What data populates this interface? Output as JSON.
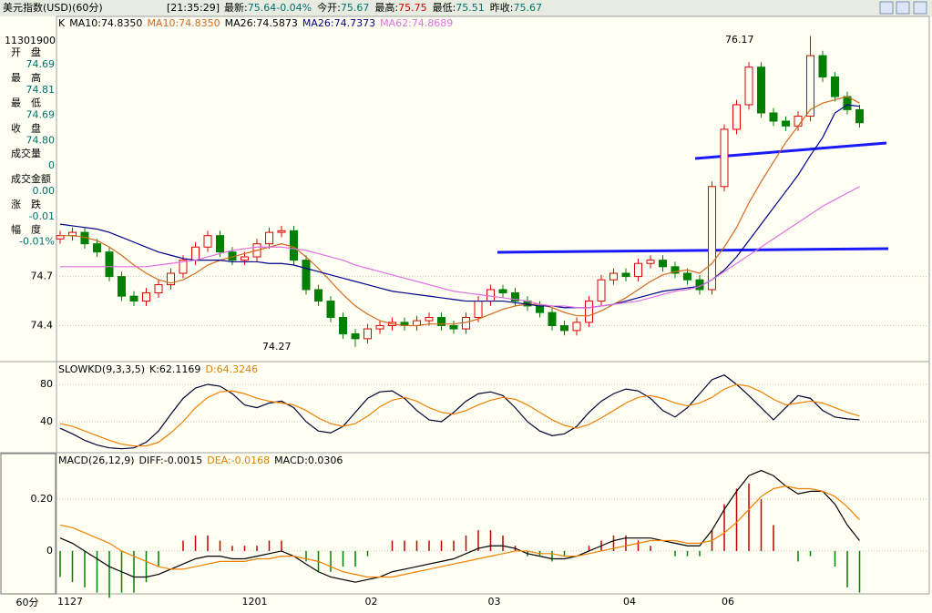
{
  "header": {
    "title": "美元指数(USD)(60分)",
    "time": "[21:35:29]",
    "fields": [
      {
        "text": "最新:",
        "color": "#000"
      },
      {
        "text": "75.64",
        "color": "#007070"
      },
      {
        "text": "-0.04%",
        "color": "#007070"
      },
      {
        "text": "今开:",
        "color": "#000"
      },
      {
        "text": "75.67",
        "color": "#007070"
      },
      {
        "text": "最高:",
        "color": "#000"
      },
      {
        "text": "75.75",
        "color": "#d00000"
      },
      {
        "text": "最低:",
        "color": "#000"
      },
      {
        "text": "75.51",
        "color": "#007070"
      },
      {
        "text": "昨收:",
        "color": "#000"
      },
      {
        "text": "75.67",
        "color": "#007070"
      }
    ]
  },
  "sidebar": {
    "id": "11301900",
    "rows": [
      {
        "label": "开　盘",
        "value": "74.69"
      },
      {
        "label": "最　高",
        "value": "74.81"
      },
      {
        "label": "最　低",
        "value": "74.69"
      },
      {
        "label": "收　盘",
        "value": "74.80"
      },
      {
        "label": "成交量",
        "value": "0"
      },
      {
        "label": "成交金额",
        "value": "0.00"
      },
      {
        "label": "涨　跌",
        "value": "-0.01"
      },
      {
        "label": "幅　度",
        "value": "-0.01%"
      }
    ],
    "period": "60分"
  },
  "chart_data": [
    {
      "type": "candlestick",
      "legend": [
        {
          "text": "K",
          "color": "#000"
        },
        {
          "text": "MA10:74.8350",
          "color": "#000"
        },
        {
          "text": "MA10:74.8350",
          "color": "#d2691e"
        },
        {
          "text": "MA26:74.5873",
          "color": "#000"
        },
        {
          "text": "MA26:74.7373",
          "color": "#000080"
        },
        {
          "text": "MA62:74.8689",
          "color": "#e070e0"
        }
      ],
      "categories": [
        "1127",
        null,
        null,
        null,
        null,
        null,
        null,
        null,
        null,
        null,
        null,
        null,
        null,
        null,
        null,
        "1201",
        null,
        null,
        null,
        null,
        null,
        null,
        null,
        null,
        null,
        "02",
        null,
        null,
        null,
        null,
        null,
        null,
        null,
        null,
        null,
        "03",
        null,
        null,
        null,
        null,
        null,
        null,
        null,
        null,
        null,
        null,
        "04",
        null,
        null,
        null,
        null,
        null,
        null,
        null,
        "06",
        null,
        null,
        null,
        null,
        null,
        null,
        null,
        null,
        null,
        null,
        null
      ],
      "open": [
        74.93,
        74.95,
        74.97,
        74.9,
        74.85,
        74.7,
        74.58,
        74.55,
        74.6,
        74.65,
        74.72,
        74.8,
        74.88,
        74.95,
        74.85,
        74.8,
        74.82,
        74.9,
        74.97,
        74.98,
        74.8,
        74.62,
        74.55,
        74.45,
        74.35,
        74.32,
        74.38,
        74.4,
        74.42,
        74.4,
        74.43,
        74.45,
        74.4,
        74.38,
        74.45,
        74.55,
        74.62,
        74.6,
        74.55,
        74.52,
        74.48,
        74.4,
        74.37,
        74.42,
        74.55,
        74.68,
        74.72,
        74.7,
        74.78,
        74.8,
        74.76,
        74.72,
        74.68,
        74.62,
        75.25,
        75.6,
        75.75,
        75.98,
        75.7,
        75.65,
        75.62,
        75.68,
        76.05,
        75.92,
        75.8,
        75.72
      ],
      "high": [
        74.98,
        75.0,
        75.0,
        74.93,
        74.88,
        74.73,
        74.61,
        74.63,
        74.68,
        74.75,
        74.83,
        74.91,
        74.98,
        74.98,
        74.88,
        74.85,
        74.93,
        75.0,
        75.01,
        75.01,
        74.83,
        74.65,
        74.58,
        74.48,
        74.38,
        74.41,
        74.43,
        74.45,
        74.45,
        74.46,
        74.48,
        74.48,
        74.43,
        74.48,
        74.58,
        74.65,
        74.65,
        74.63,
        74.58,
        74.55,
        74.51,
        74.43,
        74.45,
        74.58,
        74.71,
        74.75,
        74.75,
        74.81,
        74.83,
        74.83,
        74.79,
        74.75,
        74.71,
        75.28,
        75.63,
        75.78,
        76.01,
        76.01,
        75.73,
        75.68,
        75.71,
        76.17,
        76.08,
        75.95,
        75.83,
        75.75
      ],
      "low": [
        74.9,
        74.92,
        74.87,
        74.82,
        74.67,
        74.55,
        74.52,
        74.52,
        74.57,
        74.62,
        74.69,
        74.77,
        74.85,
        74.82,
        74.77,
        74.77,
        74.79,
        74.87,
        74.94,
        74.77,
        74.59,
        74.52,
        74.42,
        74.32,
        74.27,
        74.29,
        74.35,
        74.37,
        74.37,
        74.37,
        74.4,
        74.37,
        74.35,
        74.35,
        74.42,
        74.52,
        74.57,
        74.52,
        74.49,
        74.45,
        74.37,
        74.34,
        74.34,
        74.39,
        74.52,
        74.65,
        74.67,
        74.67,
        74.75,
        74.73,
        74.69,
        74.65,
        74.59,
        74.59,
        75.22,
        75.57,
        75.72,
        75.67,
        75.62,
        75.59,
        75.59,
        75.65,
        75.89,
        75.77,
        75.69,
        75.61
      ],
      "close": [
        74.95,
        74.97,
        74.9,
        74.85,
        74.7,
        74.58,
        74.55,
        74.6,
        74.65,
        74.72,
        74.8,
        74.88,
        74.95,
        74.85,
        74.8,
        74.82,
        74.9,
        74.97,
        74.98,
        74.8,
        74.62,
        74.55,
        74.45,
        74.35,
        74.32,
        74.38,
        74.4,
        74.42,
        74.4,
        74.43,
        74.45,
        74.4,
        74.38,
        74.45,
        74.55,
        74.62,
        74.6,
        74.55,
        74.52,
        74.48,
        74.4,
        74.37,
        74.42,
        74.55,
        74.68,
        74.72,
        74.7,
        74.78,
        74.8,
        74.76,
        74.72,
        74.68,
        74.62,
        75.25,
        75.6,
        75.75,
        75.98,
        75.7,
        75.65,
        75.62,
        75.68,
        76.05,
        75.92,
        75.8,
        75.72,
        75.64
      ],
      "up_color": "#e00000",
      "down_color": "#008000",
      "series": [
        {
          "color": "#d2691e",
          "values": [
            74.95,
            74.95,
            74.94,
            74.92,
            74.88,
            74.83,
            74.77,
            74.72,
            74.68,
            74.66,
            74.68,
            74.72,
            74.77,
            74.8,
            74.82,
            74.84,
            74.86,
            74.88,
            74.9,
            74.88,
            74.82,
            74.75,
            74.67,
            74.59,
            74.52,
            74.47,
            74.43,
            74.41,
            74.4,
            74.4,
            74.41,
            74.41,
            74.41,
            74.42,
            74.44,
            74.47,
            74.5,
            74.52,
            74.53,
            74.53,
            74.51,
            74.48,
            74.46,
            74.46,
            74.49,
            74.53,
            74.57,
            74.62,
            74.67,
            74.71,
            74.73,
            74.74,
            74.72,
            74.78,
            74.88,
            75.0,
            75.15,
            75.28,
            75.4,
            75.52,
            75.62,
            75.72,
            75.76,
            75.78,
            75.8,
            75.76
          ]
        },
        {
          "color": "#00008b",
          "values": [
            75.02,
            75.01,
            75.0,
            74.99,
            74.97,
            74.94,
            74.91,
            74.88,
            74.85,
            74.83,
            74.81,
            74.8,
            74.8,
            74.8,
            74.79,
            74.79,
            74.79,
            74.78,
            74.78,
            74.77,
            74.75,
            74.73,
            74.71,
            74.69,
            74.67,
            74.65,
            74.63,
            74.61,
            74.6,
            74.59,
            74.58,
            74.57,
            74.56,
            74.55,
            74.55,
            74.55,
            74.55,
            74.54,
            74.53,
            74.52,
            74.52,
            74.51,
            74.51,
            74.51,
            74.52,
            74.53,
            74.55,
            74.57,
            74.59,
            74.61,
            74.62,
            74.63,
            74.64,
            74.68,
            74.74,
            74.82,
            74.92,
            75.02,
            75.12,
            75.22,
            75.32,
            75.44,
            75.55,
            75.7,
            75.75,
            75.74
          ]
        },
        {
          "color": "#e070e0",
          "values": [
            74.76,
            74.76,
            74.76,
            74.76,
            74.76,
            74.76,
            74.76,
            74.76,
            74.77,
            74.78,
            74.79,
            74.8,
            74.82,
            74.84,
            74.86,
            74.87,
            74.88,
            74.88,
            74.88,
            74.87,
            74.86,
            74.84,
            74.82,
            74.8,
            74.77,
            74.75,
            74.73,
            74.71,
            74.69,
            74.67,
            74.65,
            74.63,
            74.61,
            74.6,
            74.59,
            74.58,
            74.57,
            74.56,
            74.55,
            74.53,
            74.52,
            74.52,
            74.51,
            74.51,
            74.52,
            74.53,
            74.54,
            74.55,
            74.57,
            74.59,
            74.61,
            74.62,
            74.64,
            74.68,
            74.73,
            74.78,
            74.83,
            74.88,
            74.93,
            74.98,
            75.03,
            75.08,
            75.13,
            75.17,
            75.21,
            75.25
          ]
        }
      ],
      "annotations": [
        "76.17",
        "74.27"
      ],
      "ylim": [
        74.18,
        76.29
      ],
      "yticks": [
        74.4,
        74.7
      ],
      "grid": true
    },
    {
      "type": "line",
      "legend": [
        {
          "text": "SLOWKD(9,3,3,5)",
          "color": "#000"
        },
        {
          "text": "K:62.1169",
          "color": "#000"
        },
        {
          "text": "D:64.3246",
          "color": "#e08000"
        }
      ],
      "series": [
        {
          "color": "#000033",
          "values": [
            33,
            27,
            20,
            15,
            12,
            11,
            12,
            18,
            30,
            48,
            65,
            76,
            80,
            78,
            70,
            58,
            55,
            60,
            62,
            55,
            40,
            30,
            28,
            35,
            50,
            65,
            72,
            73,
            65,
            52,
            42,
            40,
            50,
            62,
            70,
            72,
            68,
            55,
            40,
            30,
            25,
            27,
            35,
            50,
            62,
            70,
            75,
            73,
            65,
            52,
            45,
            55,
            70,
            85,
            90,
            80,
            68,
            55,
            42,
            55,
            68,
            65,
            52,
            45,
            43,
            42
          ]
        },
        {
          "color": "#f08000",
          "values": [
            38,
            35,
            30,
            25,
            20,
            16,
            14,
            14,
            18,
            28,
            40,
            55,
            66,
            72,
            73,
            70,
            65,
            62,
            60,
            58,
            52,
            44,
            38,
            35,
            38,
            46,
            56,
            63,
            66,
            62,
            55,
            50,
            48,
            52,
            58,
            63,
            66,
            64,
            58,
            50,
            42,
            36,
            33,
            37,
            44,
            52,
            60,
            66,
            68,
            65,
            60,
            57,
            60,
            66,
            75,
            80,
            78,
            72,
            64,
            58,
            60,
            62,
            60,
            55,
            50,
            46
          ]
        }
      ],
      "ylim": [
        6.8,
        103.4
      ],
      "yticks": [
        40,
        80
      ],
      "grid": true
    },
    {
      "type": "macd",
      "legend": [
        {
          "text": "MACD(26,12,9)",
          "color": "#000"
        },
        {
          "text": "DIFF:-0.0015",
          "color": "#000"
        },
        {
          "text": "DEA:-0.0168",
          "color": "#e08000"
        },
        {
          "text": "MACD:0.0306",
          "color": "#000"
        }
      ],
      "bars": {
        "pos_color": "#c00000",
        "neg_color": "#008000",
        "values": [
          -0.1,
          -0.12,
          -0.14,
          -0.16,
          -0.18,
          -0.16,
          -0.16,
          -0.12,
          -0.06,
          0.0,
          0.04,
          0.06,
          0.06,
          0.04,
          0.02,
          0.02,
          0.02,
          0.04,
          0.04,
          0.0,
          -0.04,
          -0.08,
          -0.08,
          -0.06,
          -0.06,
          -0.02,
          0.0,
          0.04,
          0.04,
          0.04,
          0.04,
          0.04,
          0.04,
          0.06,
          0.08,
          0.08,
          0.06,
          0.02,
          -0.02,
          -0.02,
          -0.04,
          -0.02,
          0.0,
          0.02,
          0.04,
          0.06,
          0.06,
          0.04,
          0.02,
          0.0,
          -0.02,
          -0.02,
          -0.02,
          0.08,
          0.18,
          0.24,
          0.26,
          0.2,
          0.1,
          0.0,
          -0.04,
          -0.02,
          0.0,
          -0.06,
          -0.14,
          -0.16
        ]
      },
      "series": [
        {
          "color": "#000000",
          "values": [
            0.05,
            0.03,
            0.0,
            -0.03,
            -0.06,
            -0.08,
            -0.1,
            -0.1,
            -0.09,
            -0.07,
            -0.05,
            -0.03,
            -0.02,
            -0.02,
            -0.03,
            -0.03,
            -0.02,
            -0.01,
            0.0,
            -0.02,
            -0.05,
            -0.08,
            -0.1,
            -0.11,
            -0.12,
            -0.11,
            -0.1,
            -0.08,
            -0.07,
            -0.06,
            -0.05,
            -0.04,
            -0.03,
            -0.01,
            0.01,
            0.02,
            0.02,
            0.01,
            -0.01,
            -0.02,
            -0.03,
            -0.03,
            -0.02,
            0.0,
            0.02,
            0.04,
            0.05,
            0.05,
            0.05,
            0.04,
            0.03,
            0.02,
            0.02,
            0.08,
            0.16,
            0.23,
            0.29,
            0.31,
            0.29,
            0.25,
            0.22,
            0.23,
            0.23,
            0.18,
            0.1,
            0.04
          ]
        },
        {
          "color": "#f08000",
          "values": [
            0.1,
            0.09,
            0.07,
            0.05,
            0.03,
            0.0,
            -0.02,
            -0.04,
            -0.06,
            -0.07,
            -0.07,
            -0.06,
            -0.05,
            -0.04,
            -0.04,
            -0.04,
            -0.03,
            -0.03,
            -0.02,
            -0.02,
            -0.03,
            -0.04,
            -0.06,
            -0.08,
            -0.09,
            -0.1,
            -0.1,
            -0.1,
            -0.09,
            -0.08,
            -0.07,
            -0.06,
            -0.05,
            -0.04,
            -0.03,
            -0.02,
            -0.01,
            0.0,
            0.0,
            -0.01,
            -0.01,
            -0.02,
            -0.02,
            -0.01,
            0.0,
            0.01,
            0.02,
            0.03,
            0.04,
            0.04,
            0.04,
            0.03,
            0.03,
            0.04,
            0.07,
            0.11,
            0.16,
            0.21,
            0.24,
            0.25,
            0.24,
            0.24,
            0.23,
            0.21,
            0.17,
            0.12
          ]
        }
      ],
      "ylim": [
        -0.165,
        0.375
      ],
      "yticks": [
        0,
        {
          "value": 0.2,
          "label": "0.20"
        }
      ],
      "grid": true
    }
  ]
}
